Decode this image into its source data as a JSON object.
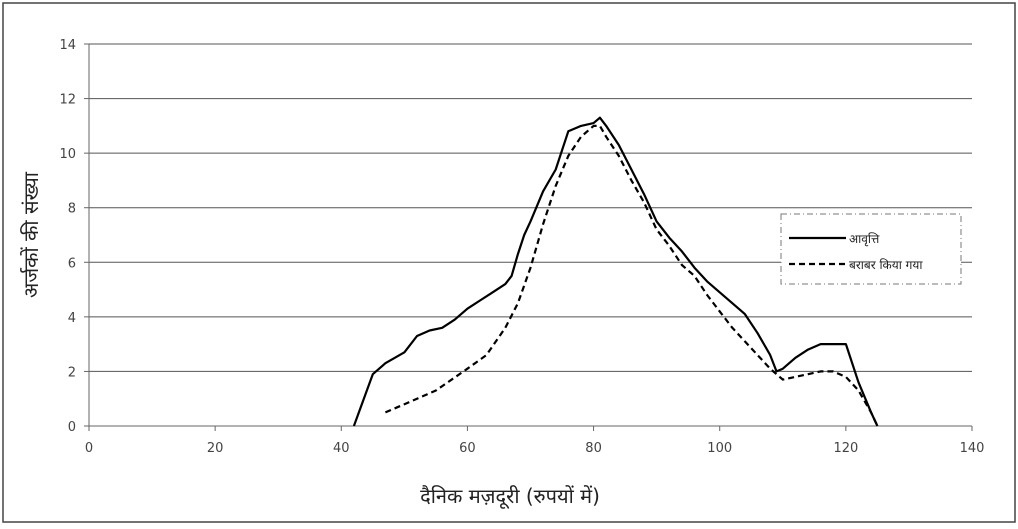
{
  "chart_data": {
    "type": "line",
    "xlabel": "दैनिक मज़दूरी (रुपयों में)",
    "ylabel": "अर्जकों की संख्या",
    "xlim": [
      0,
      140
    ],
    "ylim": [
      0,
      14
    ],
    "x_ticks": [
      "0",
      "20",
      "40",
      "60",
      "80",
      "100",
      "120",
      "140"
    ],
    "y_ticks": [
      "0",
      "2",
      "4",
      "6",
      "8",
      "10",
      "12",
      "14"
    ],
    "grid": "horizontal",
    "legend_position": "right",
    "series": [
      {
        "name": "आवृत्ति",
        "style": "solid",
        "color": "#000000",
        "x": [
          42,
          45,
          47,
          50,
          52,
          54,
          56,
          58,
          60,
          62,
          64,
          66,
          67,
          68,
          69,
          70,
          72,
          74,
          76,
          78,
          80,
          81,
          82,
          84,
          86,
          88,
          90,
          92,
          94,
          96,
          98,
          100,
          102,
          104,
          106,
          108,
          109,
          110,
          112,
          114,
          116,
          118,
          120,
          122,
          124,
          125
        ],
        "y": [
          0,
          1.9,
          2.3,
          2.7,
          3.3,
          3.5,
          3.6,
          3.9,
          4.3,
          4.6,
          4.9,
          5.2,
          5.5,
          6.3,
          7.0,
          7.5,
          8.6,
          9.4,
          10.8,
          11.0,
          11.1,
          11.3,
          11.0,
          10.3,
          9.4,
          8.5,
          7.5,
          6.9,
          6.4,
          5.8,
          5.3,
          4.9,
          4.5,
          4.1,
          3.4,
          2.6,
          2.0,
          2.1,
          2.5,
          2.8,
          3.0,
          3.0,
          3.0,
          1.6,
          0.5,
          0
        ]
      },
      {
        "name": "बराबर किया गया",
        "style": "dashed",
        "color": "#000000",
        "x": [
          47,
          50,
          55,
          60,
          63,
          66,
          68,
          70,
          72,
          74,
          76,
          78,
          80,
          81,
          82,
          84,
          86,
          88,
          90,
          92,
          94,
          96,
          98,
          100,
          102,
          104,
          106,
          108,
          110,
          112,
          114,
          116,
          118,
          120,
          122,
          124,
          125
        ],
        "y": [
          0.5,
          0.8,
          1.3,
          2.1,
          2.6,
          3.6,
          4.5,
          5.8,
          7.4,
          8.8,
          9.9,
          10.6,
          11.0,
          11.0,
          10.6,
          9.9,
          9.0,
          8.2,
          7.2,
          6.6,
          5.9,
          5.5,
          4.8,
          4.2,
          3.6,
          3.1,
          2.6,
          2.1,
          1.7,
          1.8,
          1.9,
          2.0,
          2.0,
          1.8,
          1.3,
          0.5,
          0
        ]
      }
    ]
  }
}
